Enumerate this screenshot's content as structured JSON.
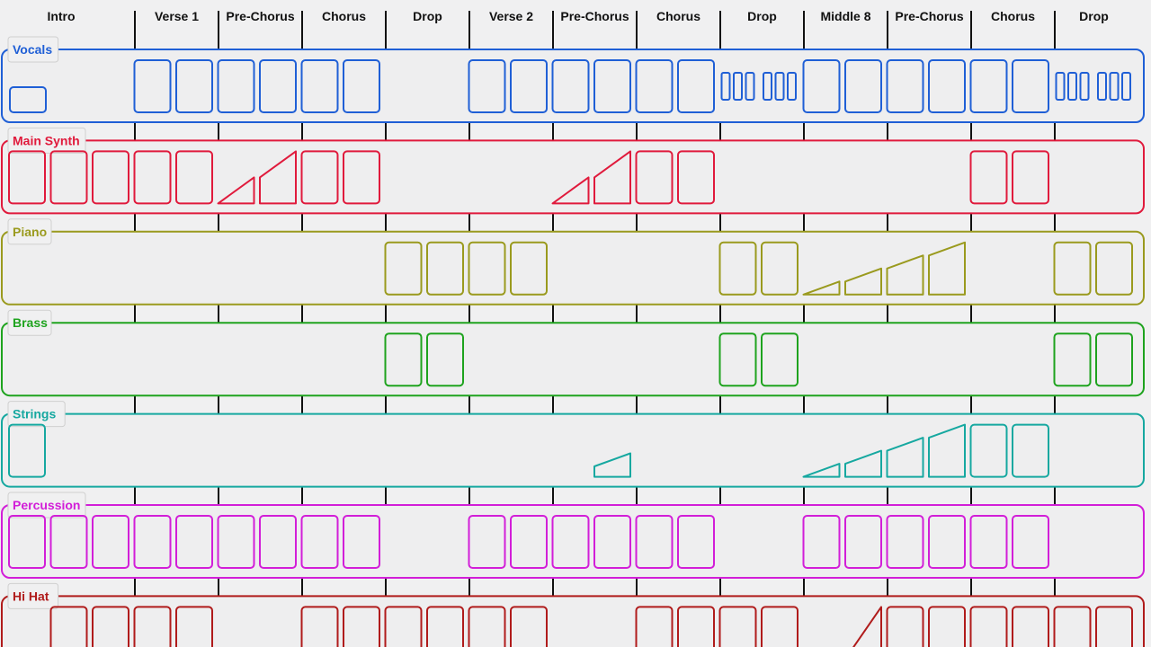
{
  "sections": [
    "Intro",
    "Verse 1",
    "Pre-Chorus",
    "Chorus",
    "Drop",
    "Verse 2",
    "Pre-Chorus",
    "Chorus",
    "Drop",
    "Middle 8",
    "Pre-Chorus",
    "Chorus",
    "Drop"
  ],
  "tracks": [
    {
      "name": "Vocals",
      "color": "#1f5fd6",
      "clips": [
        {
          "bar": 0,
          "kind": "short"
        },
        {
          "bar": 3,
          "kind": "block"
        },
        {
          "bar": 4,
          "kind": "block"
        },
        {
          "bar": 5,
          "kind": "block"
        },
        {
          "bar": 6,
          "kind": "block"
        },
        {
          "bar": 7,
          "kind": "block"
        },
        {
          "bar": 8,
          "kind": "block"
        },
        {
          "bar": 11,
          "kind": "block"
        },
        {
          "bar": 12,
          "kind": "block"
        },
        {
          "bar": 13,
          "kind": "block"
        },
        {
          "bar": 14,
          "kind": "block"
        },
        {
          "bar": 15,
          "kind": "block"
        },
        {
          "bar": 16,
          "kind": "block"
        },
        {
          "bar": 17,
          "kind": "chops"
        },
        {
          "bar": 18,
          "kind": "chops"
        },
        {
          "bar": 19,
          "kind": "block"
        },
        {
          "bar": 20,
          "kind": "block"
        },
        {
          "bar": 21,
          "kind": "block"
        },
        {
          "bar": 22,
          "kind": "block"
        },
        {
          "bar": 23,
          "kind": "block"
        },
        {
          "bar": 24,
          "kind": "block"
        },
        {
          "bar": 25,
          "kind": "chops"
        },
        {
          "bar": 26,
          "kind": "chops"
        }
      ]
    },
    {
      "name": "Main Synth",
      "color": "#e01a3c",
      "clips": [
        {
          "bar": 0,
          "kind": "block"
        },
        {
          "bar": 1,
          "kind": "block"
        },
        {
          "bar": 2,
          "kind": "block"
        },
        {
          "bar": 3,
          "kind": "block"
        },
        {
          "bar": 4,
          "kind": "block"
        },
        {
          "bar": 5,
          "kind": "ramp",
          "from": 0.0,
          "to": 0.5
        },
        {
          "bar": 6,
          "kind": "ramp",
          "from": 0.5,
          "to": 1.0
        },
        {
          "bar": 7,
          "kind": "block"
        },
        {
          "bar": 8,
          "kind": "block"
        },
        {
          "bar": 13,
          "kind": "ramp",
          "from": 0.0,
          "to": 0.5
        },
        {
          "bar": 14,
          "kind": "ramp",
          "from": 0.5,
          "to": 1.0
        },
        {
          "bar": 15,
          "kind": "block"
        },
        {
          "bar": 16,
          "kind": "block"
        },
        {
          "bar": 23,
          "kind": "block"
        },
        {
          "bar": 24,
          "kind": "block"
        }
      ]
    },
    {
      "name": "Piano",
      "color": "#9a9a1e",
      "clips": [
        {
          "bar": 9,
          "kind": "block"
        },
        {
          "bar": 10,
          "kind": "block"
        },
        {
          "bar": 11,
          "kind": "block"
        },
        {
          "bar": 12,
          "kind": "block"
        },
        {
          "bar": 17,
          "kind": "block"
        },
        {
          "bar": 18,
          "kind": "block"
        },
        {
          "bar": 19,
          "kind": "ramp",
          "from": 0.0,
          "to": 0.25
        },
        {
          "bar": 20,
          "kind": "ramp",
          "from": 0.25,
          "to": 0.5
        },
        {
          "bar": 21,
          "kind": "ramp",
          "from": 0.5,
          "to": 0.75
        },
        {
          "bar": 22,
          "kind": "ramp",
          "from": 0.75,
          "to": 1.0
        },
        {
          "bar": 25,
          "kind": "block"
        },
        {
          "bar": 26,
          "kind": "block"
        }
      ]
    },
    {
      "name": "Brass",
      "color": "#1ea31e",
      "clips": [
        {
          "bar": 9,
          "kind": "block"
        },
        {
          "bar": 10,
          "kind": "block"
        },
        {
          "bar": 17,
          "kind": "block"
        },
        {
          "bar": 18,
          "kind": "block"
        },
        {
          "bar": 25,
          "kind": "block"
        },
        {
          "bar": 26,
          "kind": "block"
        }
      ]
    },
    {
      "name": "Strings",
      "color": "#16a8a0",
      "clips": [
        {
          "bar": 0,
          "kind": "block"
        },
        {
          "bar": 14,
          "kind": "ramp",
          "from": 0.2,
          "to": 0.45
        },
        {
          "bar": 19,
          "kind": "ramp",
          "from": 0.0,
          "to": 0.25
        },
        {
          "bar": 20,
          "kind": "ramp",
          "from": 0.25,
          "to": 0.5
        },
        {
          "bar": 21,
          "kind": "ramp",
          "from": 0.5,
          "to": 0.75
        },
        {
          "bar": 22,
          "kind": "ramp",
          "from": 0.75,
          "to": 1.0
        },
        {
          "bar": 23,
          "kind": "block"
        },
        {
          "bar": 24,
          "kind": "block"
        }
      ]
    },
    {
      "name": "Percussion",
      "color": "#d21ed8",
      "clips": [
        {
          "bar": 0,
          "kind": "block"
        },
        {
          "bar": 1,
          "kind": "block"
        },
        {
          "bar": 2,
          "kind": "block"
        },
        {
          "bar": 3,
          "kind": "block"
        },
        {
          "bar": 4,
          "kind": "block"
        },
        {
          "bar": 5,
          "kind": "block"
        },
        {
          "bar": 6,
          "kind": "block"
        },
        {
          "bar": 7,
          "kind": "block"
        },
        {
          "bar": 8,
          "kind": "block"
        },
        {
          "bar": 11,
          "kind": "block"
        },
        {
          "bar": 12,
          "kind": "block"
        },
        {
          "bar": 13,
          "kind": "block"
        },
        {
          "bar": 14,
          "kind": "block"
        },
        {
          "bar": 15,
          "kind": "block"
        },
        {
          "bar": 16,
          "kind": "block"
        },
        {
          "bar": 19,
          "kind": "block"
        },
        {
          "bar": 20,
          "kind": "block"
        },
        {
          "bar": 21,
          "kind": "block"
        },
        {
          "bar": 22,
          "kind": "block"
        },
        {
          "bar": 23,
          "kind": "block"
        },
        {
          "bar": 24,
          "kind": "block"
        }
      ]
    },
    {
      "name": "Hi Hat",
      "color": "#b01b1b",
      "clips": [
        {
          "bar": 1,
          "kind": "block"
        },
        {
          "bar": 2,
          "kind": "block"
        },
        {
          "bar": 3,
          "kind": "block"
        },
        {
          "bar": 4,
          "kind": "block"
        },
        {
          "bar": 7,
          "kind": "block"
        },
        {
          "bar": 8,
          "kind": "block"
        },
        {
          "bar": 9,
          "kind": "block"
        },
        {
          "bar": 10,
          "kind": "block"
        },
        {
          "bar": 11,
          "kind": "block"
        },
        {
          "bar": 12,
          "kind": "block"
        },
        {
          "bar": 15,
          "kind": "block"
        },
        {
          "bar": 16,
          "kind": "block"
        },
        {
          "bar": 17,
          "kind": "block"
        },
        {
          "bar": 18,
          "kind": "block"
        },
        {
          "bar": 20,
          "kind": "ramp",
          "from": 0.0,
          "to": 1.0
        },
        {
          "bar": 21,
          "kind": "block"
        },
        {
          "bar": 22,
          "kind": "block"
        },
        {
          "bar": 23,
          "kind": "block"
        },
        {
          "bar": 24,
          "kind": "block"
        },
        {
          "bar": 25,
          "kind": "block"
        },
        {
          "bar": 26,
          "kind": "block"
        }
      ]
    }
  ]
}
